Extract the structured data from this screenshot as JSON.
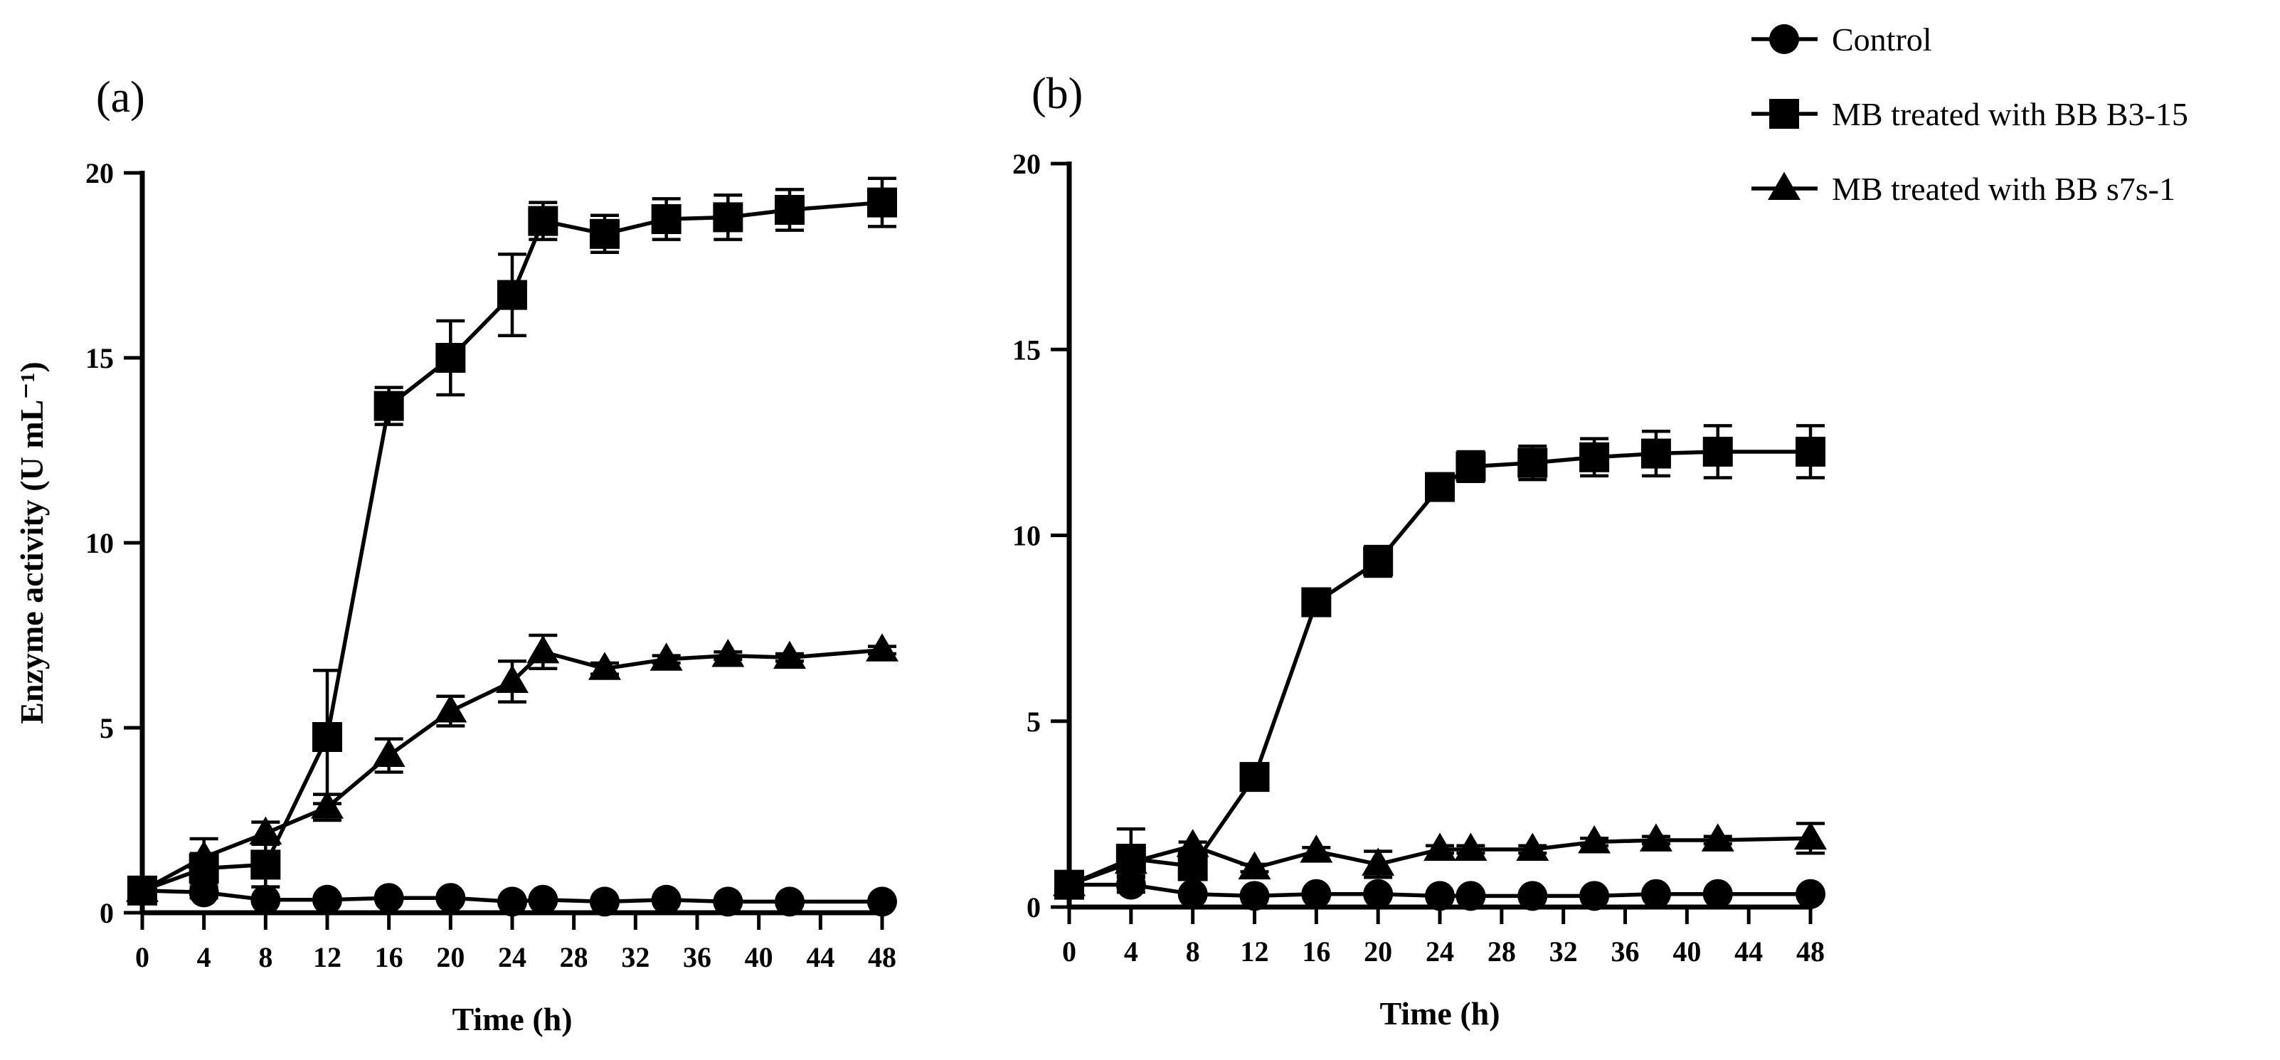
{
  "chart_data": [
    {
      "type": "line",
      "panel_label": "(a)",
      "title": "",
      "xlabel": "Time (h)",
      "ylabel": "Enzyme activity (U mL⁻¹)",
      "xlim": [
        0,
        48
      ],
      "ylim": [
        0,
        20
      ],
      "xticks": [
        0,
        4,
        8,
        12,
        16,
        20,
        24,
        28,
        32,
        36,
        40,
        44,
        48
      ],
      "yticks": [
        0,
        5,
        10,
        15,
        20
      ],
      "grid": false,
      "series": [
        {
          "name": "Control",
          "marker": "circle",
          "x": [
            0,
            4,
            8,
            12,
            16,
            20,
            24,
            26,
            30,
            34,
            38,
            42,
            48
          ],
          "values": [
            0.6,
            0.55,
            0.35,
            0.35,
            0.4,
            0.4,
            0.3,
            0.35,
            0.3,
            0.35,
            0.3,
            0.3,
            0.3
          ],
          "errors": [
            0.1,
            0.15,
            0.05,
            0.05,
            0.05,
            0.05,
            0.05,
            0.05,
            0.05,
            0.05,
            0.05,
            0.05,
            0.05
          ]
        },
        {
          "name": "MB treated with BB B3-15",
          "marker": "square",
          "x": [
            0,
            4,
            8,
            12,
            16,
            20,
            24,
            26,
            30,
            34,
            38,
            42,
            48
          ],
          "values": [
            0.6,
            1.2,
            1.3,
            4.75,
            13.7,
            15.0,
            16.7,
            18.7,
            18.35,
            18.75,
            18.8,
            19.0,
            19.2
          ],
          "errors": [
            0.2,
            0.4,
            0.6,
            1.8,
            0.5,
            1.0,
            1.1,
            0.5,
            0.5,
            0.55,
            0.6,
            0.55,
            0.65
          ]
        },
        {
          "name": "MB treated with BB s7s-1",
          "marker": "triangle",
          "x": [
            0,
            4,
            8,
            12,
            16,
            20,
            24,
            26,
            30,
            34,
            38,
            42,
            48
          ],
          "values": [
            0.6,
            1.5,
            2.15,
            2.85,
            4.25,
            5.45,
            6.25,
            7.05,
            6.6,
            6.85,
            6.95,
            6.9,
            7.1
          ],
          "errors": [
            0.2,
            0.5,
            0.3,
            0.35,
            0.45,
            0.4,
            0.55,
            0.45,
            0.15,
            0.1,
            0.1,
            0.1,
            0.1
          ]
        }
      ]
    },
    {
      "type": "line",
      "panel_label": "(b)",
      "title": "",
      "xlabel": "Time (h)",
      "ylabel": "",
      "xlim": [
        0,
        48
      ],
      "ylim": [
        0,
        20
      ],
      "xticks": [
        0,
        4,
        8,
        12,
        16,
        20,
        24,
        28,
        32,
        36,
        40,
        44,
        48
      ],
      "yticks": [
        0,
        5,
        10,
        15,
        20
      ],
      "grid": false,
      "series": [
        {
          "name": "Control",
          "marker": "circle",
          "x": [
            0,
            4,
            8,
            12,
            16,
            20,
            24,
            26,
            30,
            34,
            38,
            42,
            48
          ],
          "values": [
            0.6,
            0.6,
            0.35,
            0.3,
            0.35,
            0.35,
            0.3,
            0.3,
            0.3,
            0.3,
            0.35,
            0.35,
            0.35
          ],
          "errors": [
            0.1,
            0.2,
            0.05,
            0.05,
            0.05,
            0.05,
            0.05,
            0.05,
            0.05,
            0.05,
            0.05,
            0.05,
            0.05
          ]
        },
        {
          "name": "MB treated with BB B3-15",
          "marker": "square",
          "x": [
            0,
            4,
            8,
            12,
            16,
            20,
            24,
            26,
            30,
            34,
            38,
            42,
            48
          ],
          "values": [
            0.6,
            1.3,
            1.1,
            3.5,
            8.2,
            9.3,
            11.3,
            11.85,
            11.95,
            12.1,
            12.2,
            12.25,
            12.25
          ],
          "errors": [
            0.15,
            0.8,
            0.3,
            0.2,
            0.2,
            0.4,
            0.25,
            0.4,
            0.45,
            0.5,
            0.6,
            0.7,
            0.7
          ]
        },
        {
          "name": "MB treated with BB s7s-1",
          "marker": "triangle",
          "x": [
            0,
            4,
            8,
            12,
            16,
            20,
            24,
            26,
            30,
            34,
            38,
            42,
            48
          ],
          "values": [
            0.6,
            1.2,
            1.65,
            1.05,
            1.5,
            1.15,
            1.55,
            1.55,
            1.55,
            1.75,
            1.8,
            1.8,
            1.85
          ],
          "errors": [
            0.15,
            0.35,
            0.1,
            0.1,
            0.1,
            0.35,
            0.1,
            0.1,
            0.1,
            0.1,
            0.1,
            0.1,
            0.4
          ]
        }
      ]
    }
  ],
  "legend": {
    "placement": "top-right",
    "entries": [
      {
        "label": "Control",
        "marker": "circle"
      },
      {
        "label": "MB treated with BB B3-15",
        "marker": "square"
      },
      {
        "label": "MB treated with BB s7s-1",
        "marker": "triangle"
      }
    ]
  }
}
